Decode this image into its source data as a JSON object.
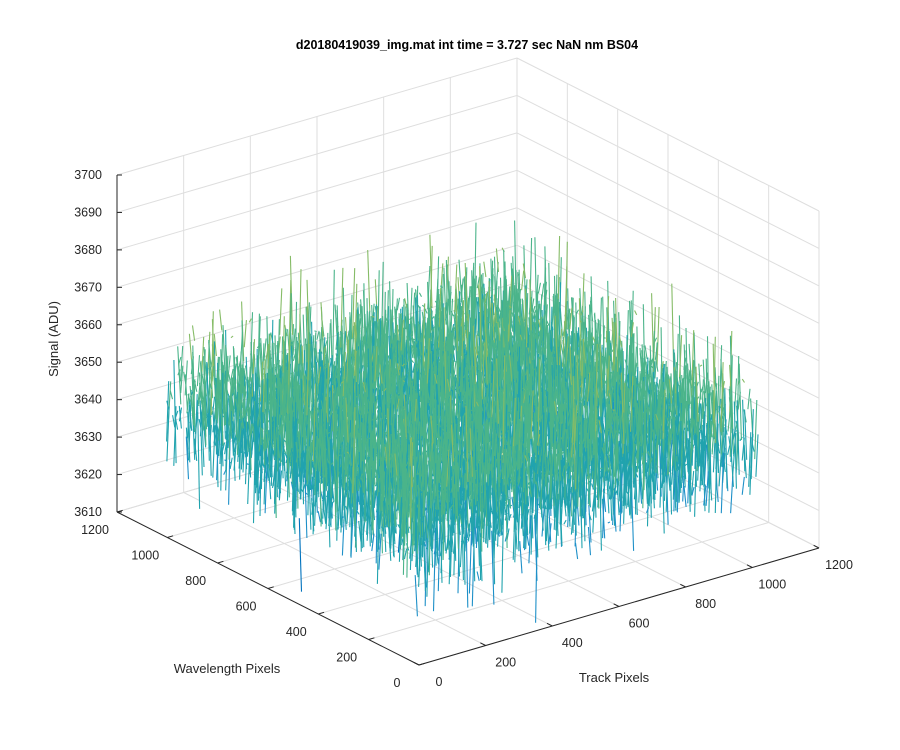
{
  "chart_data": {
    "type": "surface",
    "title": "d20180419039_img.mat int time = 3.727 sec  NaN nm BS04",
    "xlabel": "Track Pixels",
    "ylabel": "Wavelength Pixels",
    "zlabel": "Signal (ADU)",
    "xlim": [
      0,
      1200
    ],
    "ylim": [
      0,
      1200
    ],
    "zlim": [
      3610,
      3700
    ],
    "x_ticks": [
      "0",
      "200",
      "400",
      "600",
      "800",
      "1000",
      "1200"
    ],
    "y_ticks": [
      "0",
      "200",
      "400",
      "600",
      "800",
      "1000",
      "1200"
    ],
    "z_ticks": [
      "3610",
      "3620",
      "3630",
      "3640",
      "3650",
      "3660",
      "3670",
      "3680",
      "3690",
      "3700"
    ],
    "data_extent": {
      "x": [
        0,
        1024
      ],
      "y": [
        0,
        1024
      ],
      "z_mean": 3645,
      "z_range": [
        3612,
        3690
      ]
    },
    "colormap": [
      "#0072BD",
      "#1E90C8",
      "#20A3AE",
      "#4BB48A",
      "#86BC67",
      "#C6B54A",
      "#EDB84A"
    ],
    "grid": true,
    "view": "3d"
  }
}
